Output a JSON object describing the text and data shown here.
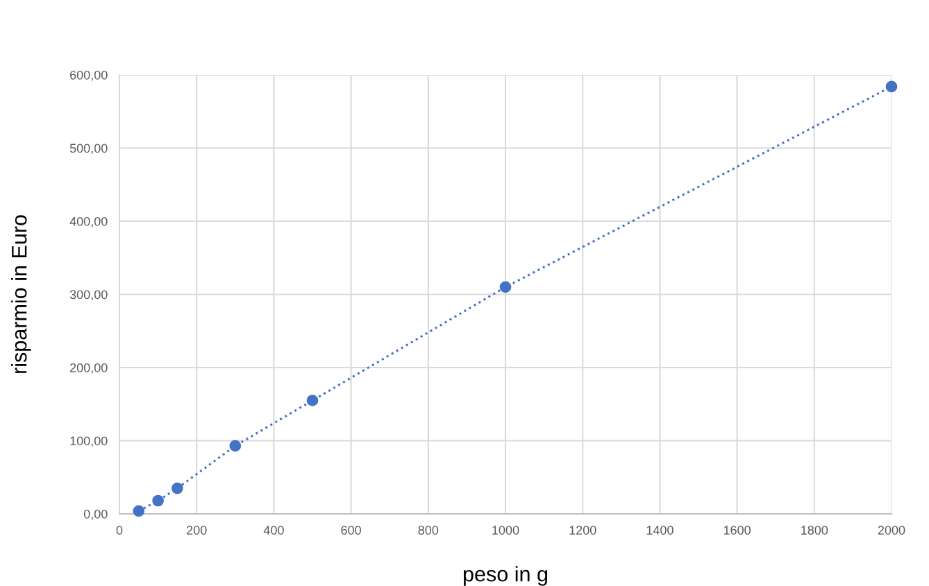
{
  "chart_data": {
    "type": "line",
    "xlabel": "peso in g",
    "ylabel": "risparmio in Euro",
    "x": [
      50,
      100,
      150,
      300,
      500,
      1000,
      2000
    ],
    "series": [
      {
        "color": "#4472c4",
        "values": [
          4,
          18,
          35,
          93,
          155,
          310,
          584
        ]
      }
    ],
    "marker": "circle",
    "line_style": "dotted",
    "grid": true,
    "xlim": [
      0,
      2000
    ],
    "xticks": [
      0,
      200,
      400,
      600,
      800,
      1000,
      1200,
      1400,
      1600,
      1800,
      2000
    ],
    "ylim": [
      0,
      600
    ],
    "yticks": [
      {
        "value": 0,
        "label": "0,00"
      },
      {
        "value": 100,
        "label": "100,00"
      },
      {
        "value": 200,
        "label": "200,00"
      },
      {
        "value": 300,
        "label": "300,00"
      },
      {
        "value": 400,
        "label": "400,00"
      },
      {
        "value": 500,
        "label": "500,00"
      },
      {
        "value": 600,
        "label": "600,00"
      }
    ]
  }
}
